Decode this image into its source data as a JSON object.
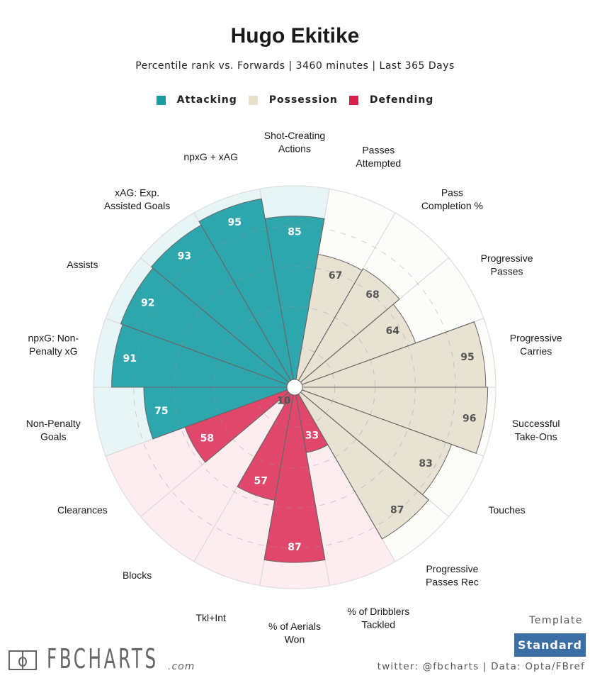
{
  "header": {
    "title": "Hugo Ekitike",
    "subtitle": "Percentile rank vs. Forwards | 3460 minutes | Last 365 Days"
  },
  "legend": [
    {
      "label": "Attacking",
      "color": "#1a9a9e"
    },
    {
      "label": "Possession",
      "color": "#e6e0cd"
    },
    {
      "label": "Defending",
      "color": "#dc1e4c"
    }
  ],
  "colors": {
    "attacking_fill": "#2ea6ad",
    "attacking_bg": "#e8f5f6",
    "possession_fill": "#e7e2d2",
    "possession_bg": "#fcfcfa",
    "defending_fill": "#e0476b",
    "defending_bg": "#fdecf0",
    "value_text_dark": "#555555",
    "value_text_light": "#ffffff"
  },
  "chart_data": {
    "type": "polar-bar",
    "title": "Hugo Ekitike",
    "subtitle": "Percentile rank vs. Forwards | 3460 minutes | Last 365 Days",
    "rlim": [
      0,
      100
    ],
    "gridlines": [
      20,
      40,
      60,
      80
    ],
    "direction": "clockwise from top",
    "legend_position": "top",
    "categories": [
      {
        "label": [
          "Shot-Creating",
          "Actions"
        ],
        "value": 85,
        "group": "Attacking"
      },
      {
        "label": [
          "Passes",
          "Attempted"
        ],
        "value": 67,
        "group": "Possession"
      },
      {
        "label": [
          "Pass",
          "Completion %"
        ],
        "value": 68,
        "group": "Possession"
      },
      {
        "label": [
          "Progressive",
          "Passes"
        ],
        "value": 64,
        "group": "Possession"
      },
      {
        "label": [
          "Progressive",
          "Carries"
        ],
        "value": 95,
        "group": "Possession"
      },
      {
        "label": [
          "Successful",
          "Take-Ons"
        ],
        "value": 96,
        "group": "Possession"
      },
      {
        "label": [
          "Touches"
        ],
        "value": 83,
        "group": "Possession"
      },
      {
        "label": [
          "Progressive",
          "Passes Rec"
        ],
        "value": 87,
        "group": "Possession"
      },
      {
        "label": [
          "% of Dribblers",
          "Tackled"
        ],
        "value": 33,
        "group": "Defending"
      },
      {
        "label": [
          "% of Aerials",
          "Won"
        ],
        "value": 87,
        "group": "Defending"
      },
      {
        "label": [
          "Tkl+Int"
        ],
        "value": 57,
        "group": "Defending"
      },
      {
        "label": [
          "Blocks"
        ],
        "value": 10,
        "group": "Defending"
      },
      {
        "label": [
          "Clearances"
        ],
        "value": 58,
        "group": "Defending"
      },
      {
        "label": [
          "Non-Penalty",
          "Goals"
        ],
        "value": 75,
        "group": "Attacking"
      },
      {
        "label": [
          "npxG: Non-",
          "Penalty xG"
        ],
        "value": 91,
        "group": "Attacking"
      },
      {
        "label": [
          "Assists"
        ],
        "value": 92,
        "group": "Attacking"
      },
      {
        "label": [
          "xAG: Exp.",
          "Assisted Goals"
        ],
        "value": 93,
        "group": "Attacking"
      },
      {
        "label": [
          "npxG + xAG"
        ],
        "value": 95,
        "group": "Attacking"
      }
    ]
  },
  "footer": {
    "logo_text": "FBCHARTS",
    "logo_suffix": ".com",
    "template_label": "Template",
    "template_value": "Standard",
    "credits": "twitter: @fbcharts | Data: Opta/FBref"
  }
}
